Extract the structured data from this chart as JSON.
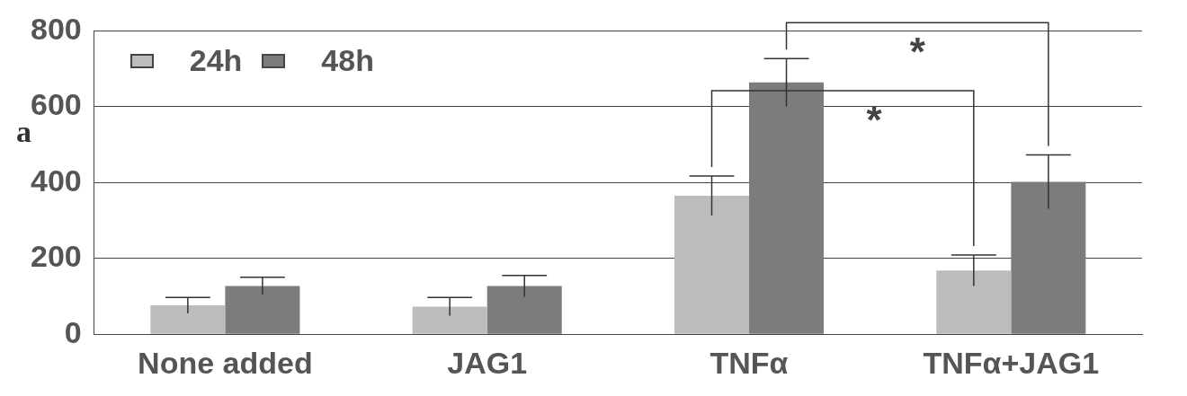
{
  "chart_data": {
    "type": "bar",
    "categories": [
      "None added",
      "JAG1",
      "TNFα",
      "TNFα+JAG1"
    ],
    "series": [
      {
        "name": "24h",
        "color": "#bcbcbc",
        "values": [
          76,
          73,
          365,
          168
        ],
        "errors": [
          21,
          24,
          52,
          41
        ]
      },
      {
        "name": "48h",
        "color": "#7c7c7c",
        "values": [
          127,
          127,
          664,
          402
        ],
        "errors": [
          23,
          28,
          63,
          71
        ]
      }
    ],
    "ylim": [
      0,
      800
    ],
    "yticks": [
      0,
      200,
      400,
      600,
      800
    ],
    "grid": "y",
    "legend": "top left",
    "annotations": [
      "a",
      "*",
      "*"
    ]
  }
}
